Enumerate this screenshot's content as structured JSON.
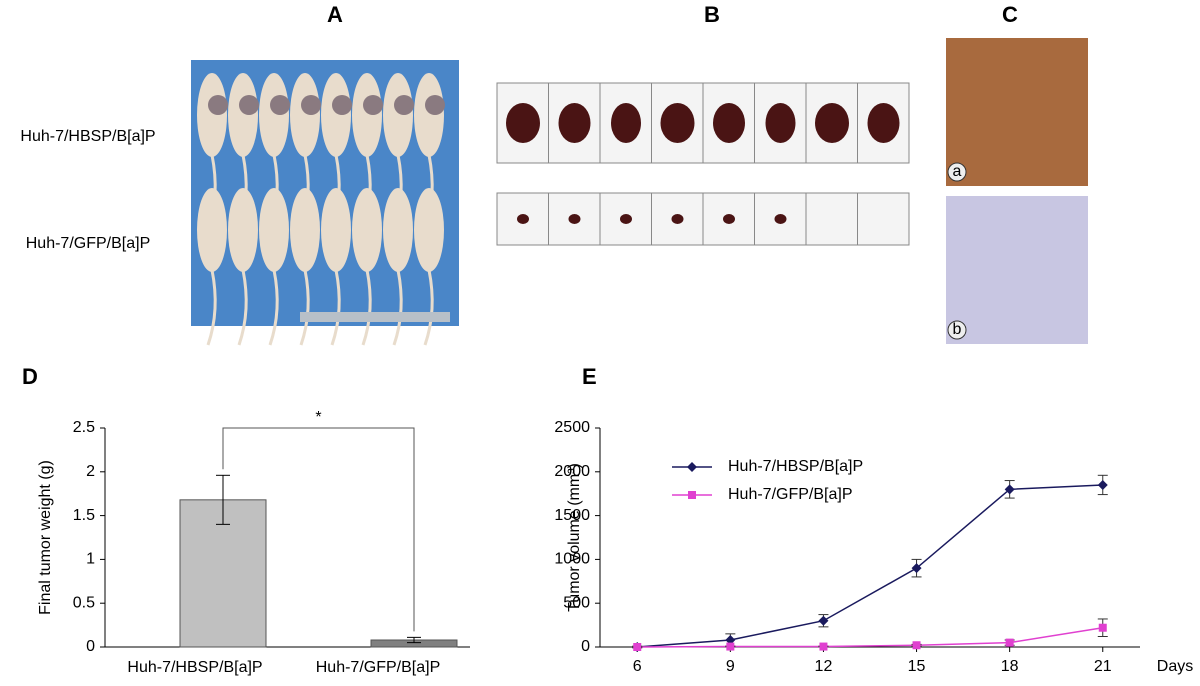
{
  "panels": {
    "A": {
      "label": "A",
      "rows": [
        "Huh-7/HBSP/B[a]P",
        "Huh-7/GFP/B[a]P"
      ]
    },
    "B": {
      "label": "B"
    },
    "C": {
      "label": "C",
      "sublabels": [
        "a",
        "b"
      ]
    }
  },
  "chart_data": [
    {
      "type": "bar",
      "label": "D",
      "ylabel": "Final tumor weight (g)",
      "categories": [
        "Huh-7/HBSP/B[a]P",
        "Huh-7/GFP/B[a]P"
      ],
      "values": [
        1.68,
        0.08
      ],
      "errors": [
        0.28,
        0.03
      ],
      "colors": [
        "#c0c0c0",
        "#808080"
      ],
      "annotation": "*",
      "ylim": [
        0,
        2.5
      ],
      "yticks": [
        0,
        0.5,
        1,
        1.5,
        2,
        2.5
      ]
    },
    {
      "type": "line",
      "label": "E",
      "ylabel": "Tumor volume (mm³)",
      "xlabel": "Days",
      "x": [
        6,
        9,
        12,
        15,
        18,
        21
      ],
      "series": [
        {
          "name": "Huh-7/HBSP/B[a]P",
          "color": "#1a1a5e",
          "marker": "diamond",
          "values": [
            0,
            80,
            300,
            900,
            1800,
            1850
          ],
          "errors": [
            10,
            70,
            70,
            100,
            100,
            110
          ]
        },
        {
          "name": "Huh-7/GFP/B[a]P",
          "color": "#e040d0",
          "marker": "square",
          "values": [
            0,
            5,
            5,
            20,
            50,
            220
          ],
          "errors": [
            5,
            5,
            5,
            10,
            30,
            100
          ]
        }
      ],
      "xlim": [
        4.8,
        22.2
      ],
      "xticks": [
        6,
        9,
        12,
        15,
        18,
        21
      ],
      "ylim": [
        0,
        2500
      ],
      "yticks": [
        0,
        500,
        1000,
        1500,
        2000,
        2500
      ]
    }
  ]
}
